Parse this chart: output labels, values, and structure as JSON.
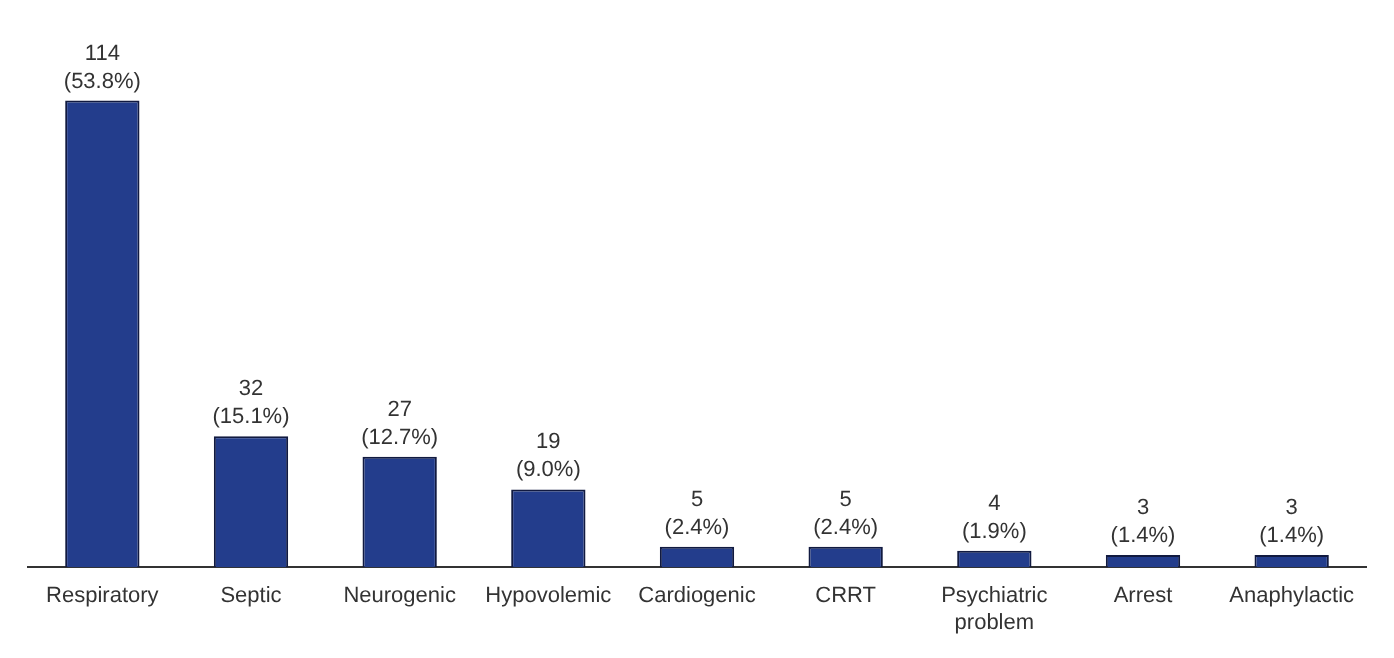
{
  "chart_data": {
    "type": "bar",
    "categories": [
      "Respiratory",
      "Septic",
      "Neurogenic",
      "Hypovolemic",
      "Cardiogenic",
      "CRRT",
      "Psychiatric problem",
      "Arrest",
      "Anaphylactic"
    ],
    "values": [
      114,
      32,
      27,
      19,
      5,
      5,
      4,
      3,
      3
    ],
    "value_labels": [
      "114 (53.8%)",
      "32 (15.1%)",
      "27 (12.7%)",
      "19 (9.0%)",
      "5 (2.4%)",
      "5 (2.4%)",
      "4 (1.9%)",
      "3 (1.4%)",
      "3 (1.4%)"
    ],
    "color": "#233d8c",
    "tick_labels": "x",
    "grid": false,
    "legend": false
  }
}
